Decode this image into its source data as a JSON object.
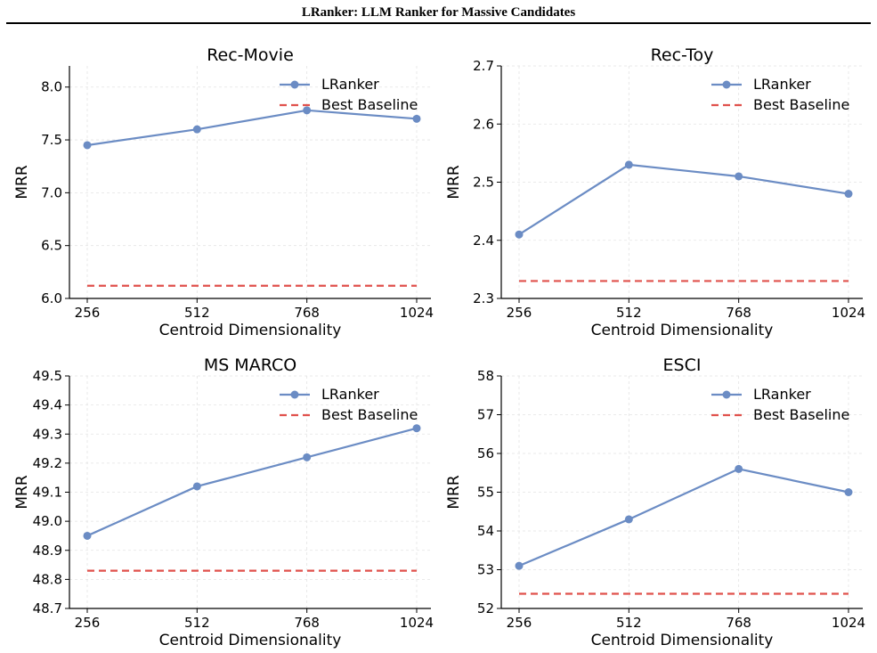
{
  "header": {
    "title": "LRanker: LLM Ranker for Massive Candidates"
  },
  "colors": {
    "lranker": "#6b8cc4",
    "baseline": "#e0514c",
    "grid": "#e3e3e3",
    "axis": "#000000"
  },
  "chart_data": [
    {
      "type": "line",
      "title": "Rec-Movie",
      "xlabel": "Centroid Dimensionality",
      "ylabel": "MRR",
      "categories": [
        "256",
        "512",
        "768",
        "1024"
      ],
      "ylim": [
        6.0,
        8.2
      ],
      "yticks": [
        "6.0",
        "6.5",
        "7.0",
        "7.5",
        "8.0"
      ],
      "legend_position": "top-right",
      "grid": true,
      "series": [
        {
          "name": "LRanker",
          "style": "solid-marker",
          "values": [
            7.45,
            7.6,
            7.78,
            7.7
          ]
        },
        {
          "name": "Best Baseline",
          "style": "dashed",
          "values": [
            6.12,
            6.12,
            6.12,
            6.12
          ]
        }
      ]
    },
    {
      "type": "line",
      "title": "Rec-Toy",
      "xlabel": "Centroid Dimensionality",
      "ylabel": "MRR",
      "categories": [
        "256",
        "512",
        "768",
        "1024"
      ],
      "ylim": [
        2.3,
        2.7
      ],
      "yticks": [
        "2.3",
        "2.4",
        "2.5",
        "2.6",
        "2.7"
      ],
      "legend_position": "top-right",
      "grid": true,
      "series": [
        {
          "name": "LRanker",
          "style": "solid-marker",
          "values": [
            2.41,
            2.53,
            2.51,
            2.48
          ]
        },
        {
          "name": "Best Baseline",
          "style": "dashed",
          "values": [
            2.33,
            2.33,
            2.33,
            2.33
          ]
        }
      ]
    },
    {
      "type": "line",
      "title": "MS MARCO",
      "xlabel": "Centroid Dimensionality",
      "ylabel": "MRR",
      "categories": [
        "256",
        "512",
        "768",
        "1024"
      ],
      "ylim": [
        48.7,
        49.5
      ],
      "yticks": [
        "48.7",
        "48.8",
        "48.9",
        "49.0",
        "49.1",
        "49.2",
        "49.3",
        "49.4",
        "49.5"
      ],
      "legend_position": "top-right",
      "grid": true,
      "series": [
        {
          "name": "LRanker",
          "style": "solid-marker",
          "values": [
            48.95,
            49.12,
            49.22,
            49.32
          ]
        },
        {
          "name": "Best Baseline",
          "style": "dashed",
          "values": [
            48.83,
            48.83,
            48.83,
            48.83
          ]
        }
      ]
    },
    {
      "type": "line",
      "title": "ESCI",
      "xlabel": "Centroid Dimensionality",
      "ylabel": "MRR",
      "categories": [
        "256",
        "512",
        "768",
        "1024"
      ],
      "ylim": [
        52,
        58
      ],
      "yticks": [
        "52",
        "53",
        "54",
        "55",
        "56",
        "57",
        "58"
      ],
      "legend_position": "top-right",
      "grid": true,
      "series": [
        {
          "name": "LRanker",
          "style": "solid-marker",
          "values": [
            53.1,
            54.3,
            55.6,
            55.0
          ]
        },
        {
          "name": "Best Baseline",
          "style": "dashed",
          "values": [
            52.38,
            52.38,
            52.38,
            52.38
          ]
        }
      ]
    }
  ]
}
